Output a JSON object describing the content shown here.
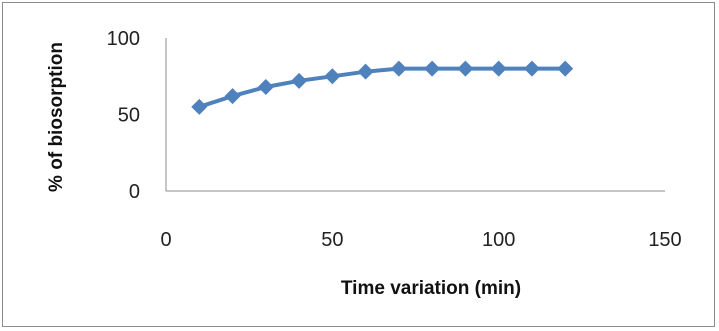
{
  "chart_data": {
    "type": "line",
    "xlabel": "Time variation (min)",
    "ylabel": "% of biosorption",
    "xlim": [
      0,
      150
    ],
    "ylim": [
      0,
      100
    ],
    "x_ticks": [
      "0",
      "50",
      "100",
      "150"
    ],
    "y_ticks": [
      "0",
      "50",
      "100"
    ],
    "grid": false,
    "legend": "none",
    "series": [
      {
        "x": [
          10,
          20,
          30,
          40,
          50,
          60,
          70,
          80,
          90,
          100,
          110,
          120
        ],
        "y": [
          55,
          62,
          68,
          72,
          75,
          78,
          80,
          80,
          80,
          80,
          80,
          80
        ]
      }
    ],
    "colors": {
      "series": "#4f81bd",
      "axis": "#8c8c8c"
    }
  }
}
